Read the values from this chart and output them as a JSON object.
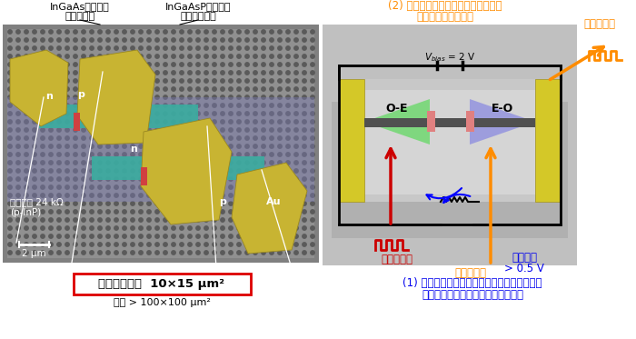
{
  "left_label1": "InGaAs埋め込み",
  "left_label2": "ナノ受光器",
  "right_label1": "InGaAsP埋め込み",
  "right_label2": "ナノ光変調器",
  "annotation1_line1": "(2) 光起電圧をナノ光変調器に与え，",
  "annotation1_line2": "新たな光信号を生成",
  "annotation2": "光信号出力",
  "vbias_label": "$V_{bias}$ = 2 V",
  "oe_label": "O-E",
  "eo_label": "E-O",
  "optical_input": "光信号入力",
  "cw_input": "連続光入力",
  "photovoltage": "光起電圧",
  "photovoltage2": "> 0.5 V",
  "device_area_main": "デバイス面積  10×15 μm²",
  "device_area_sub": "従来 > 100×100 μm²",
  "annotation3_line1": "(1) 低容量化により，受光器出力を電気増幅を",
  "annotation3_line2": "使わず大きな負荷抵抗で電圧に変換",
  "load_resistance1": "負荷抵抗 24 kΩ",
  "load_resistance2": "(p-InP)",
  "scale_bar": "2 μm",
  "bg_color": "#ffffff",
  "orange_color": "#FF8C00",
  "blue_color": "#0000EE",
  "red_color": "#CC0000"
}
